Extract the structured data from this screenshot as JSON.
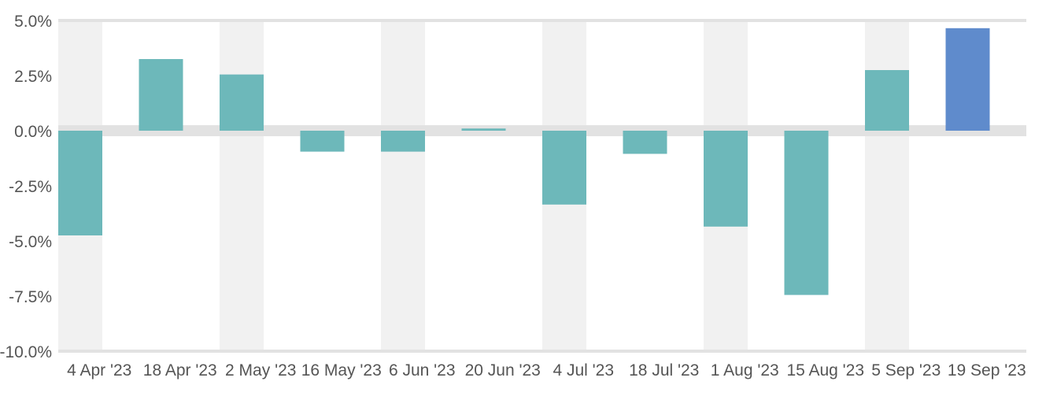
{
  "chart_data": {
    "type": "bar",
    "title": "",
    "xlabel": "",
    "ylabel": "",
    "categories": [
      "4 Apr '23",
      "18 Apr '23",
      "2 May '23",
      "16 May '23",
      "6 Jun '23",
      "20 Jun '23",
      "4 Jul '23",
      "18 Jul '23",
      "1 Aug '23",
      "15 Aug '23",
      "5 Sep '23",
      "19 Sep '23"
    ],
    "values": [
      -4.75,
      3.25,
      2.55,
      -0.95,
      -0.95,
      0.1,
      -3.35,
      -1.05,
      -4.35,
      -7.45,
      2.75,
      4.65
    ],
    "ylim": [
      -10.0,
      5.0
    ],
    "yticks": [
      5.0,
      2.5,
      0.0,
      -2.5,
      -5.0,
      -7.5,
      -10.0
    ],
    "ytick_labels": [
      "5.0%",
      "2.5%",
      "0.0%",
      "-2.5%",
      "-5.0%",
      "-7.5%",
      "-10.0%"
    ],
    "grid": true,
    "highlight_index": 11,
    "colors": {
      "bar": "#6db8ba",
      "highlight": "#5f8bcc",
      "stripe": "#f1f1f1",
      "zero_band": "#e2e2e2",
      "gridline": "#e2e2e2",
      "text": "#555555"
    }
  }
}
